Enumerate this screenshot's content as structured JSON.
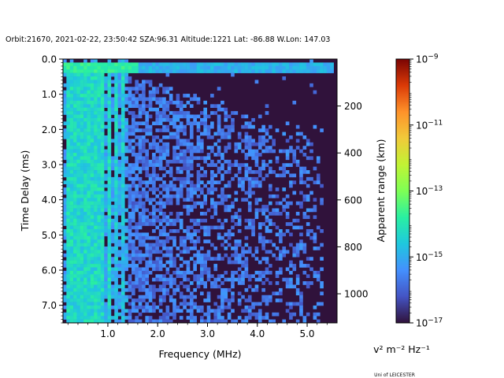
{
  "chart_data": {
    "type": "heatmap",
    "title": "Orbit:21670, 2021-02-22, 23:50:42 SZA:96.31 Altitude:1221 Lat: -86.88 W.Lon: 147.03",
    "xlabel": "Frequency (MHz)",
    "ylabel": "Time Delay (ms)",
    "y2label": "Apparent range (km)",
    "colorbar_label": "v² m⁻² Hz⁻¹",
    "credit": "Uni of LEICESTER",
    "xlim": [
      0.1,
      5.6
    ],
    "ylim": [
      7.5,
      0.0
    ],
    "y2lim": [
      0,
      1124
    ],
    "x_ticks": [
      1.0,
      2.0,
      3.0,
      4.0,
      5.0
    ],
    "x_tick_labels": [
      "1.0",
      "2.0",
      "3.0",
      "4.0",
      "5.0"
    ],
    "y_ticks": [
      0.0,
      1.0,
      2.0,
      3.0,
      4.0,
      5.0,
      6.0,
      7.0
    ],
    "y_tick_labels": [
      "0.0",
      "1.0",
      "2.0",
      "3.0",
      "4.0",
      "5.0",
      "6.0",
      "7.0"
    ],
    "y2_ticks": [
      200,
      400,
      600,
      800,
      1000
    ],
    "y2_tick_labels": [
      "200",
      "400",
      "600",
      "800",
      "1000"
    ],
    "color_scale": "log",
    "colormap": "turbo",
    "clim": [
      1e-17,
      1e-09
    ],
    "colorbar_ticks": [
      -17,
      -15,
      -13,
      -11,
      -9
    ],
    "colorbar_tick_bases": [
      "10",
      "10",
      "10",
      "10",
      "10"
    ],
    "colorbar_tick_exponents": [
      "−17",
      "−15",
      "−13",
      "−11",
      "−9"
    ],
    "background_color": "#30123b",
    "features": {
      "strong_vertical_lines_mhz": [
        0.18,
        0.25,
        0.32,
        0.44,
        0.58,
        0.72,
        0.86,
        1.02,
        1.18,
        1.28
      ],
      "top_band_delay_ms": [
        0.1,
        0.35
      ],
      "diffuse_echo_cutoff_mhz": 5.3
    }
  }
}
